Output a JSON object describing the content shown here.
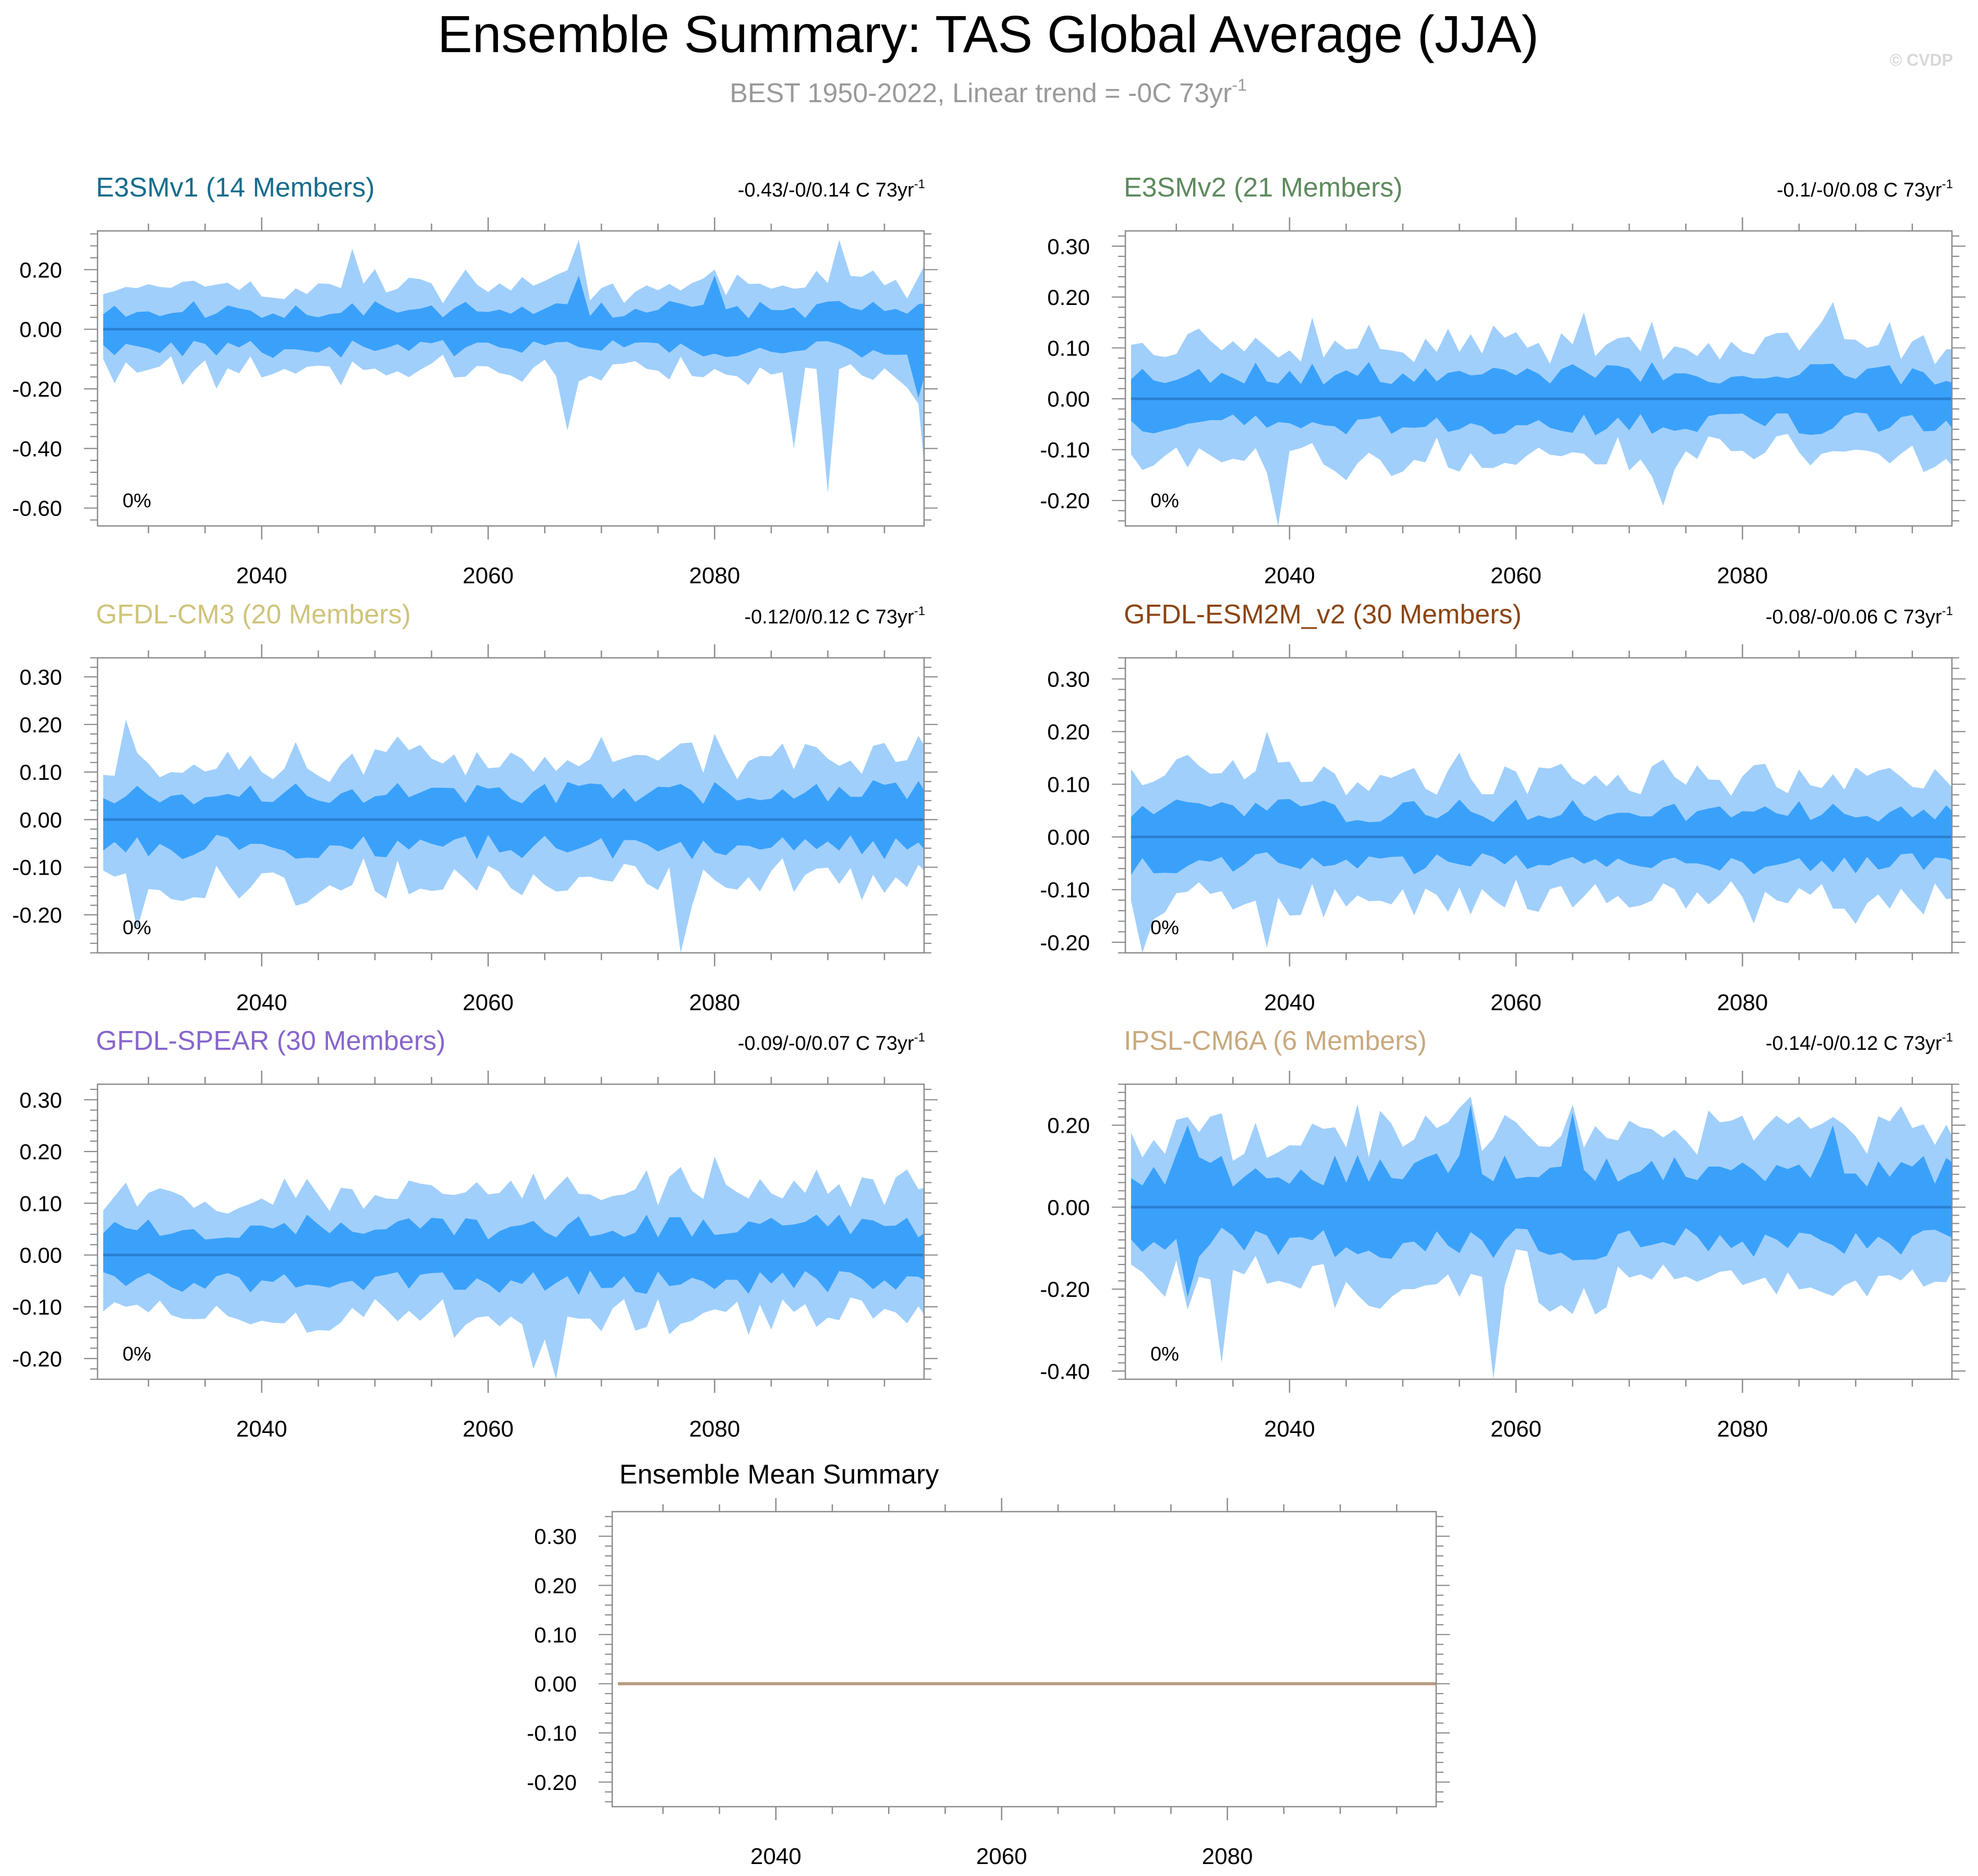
{
  "figure": {
    "title": "Ensemble Summary: TAS Global Average (JJA)",
    "subtitle_main": "BEST 1950-2022, Linear trend = -0C 73yr",
    "subtitle_sup": "-1",
    "watermark": "© CVDP"
  },
  "colors": {
    "band_outer": "#a0cffc",
    "band_inner": "#3aa1fb",
    "mean_line": "#2a7fd1",
    "frame": "#8a8a8a",
    "tick_text": "#000000",
    "subtitle": "#9a9a9a",
    "watermark": "#d8d8d8",
    "summary_line": "#b89c80"
  },
  "chart_data": [
    {
      "type": "area",
      "model": "E3SMv1 (14 Members)",
      "model_color": "#176c8c",
      "trend_label": "-0.43/-0/0.14 C 73yr",
      "trend_sup": "-1",
      "percent_label": "0%",
      "x_range": [
        2026,
        2099
      ],
      "xlim": [
        2025.5,
        2098.5
      ],
      "xticks": [
        2040,
        2060,
        2080
      ],
      "ylim": [
        -0.66,
        0.33
      ],
      "yticks": [
        -0.6,
        -0.4,
        -0.2,
        0.0,
        0.2
      ],
      "ytick_labels": [
        "-0.60",
        "-0.40",
        "-0.20",
        "0.00",
        "0.20"
      ],
      "seed": 11,
      "outer_scale": 0.16,
      "inner_scale": 0.08,
      "outer_spikes": {
        "upper": [
          [
            2068,
            0.3
          ],
          [
            2091,
            0.3
          ],
          [
            2099,
            0.25
          ],
          [
            2048,
            0.27
          ]
        ],
        "lower": [
          [
            2090,
            -0.55
          ],
          [
            2099,
            -0.65
          ],
          [
            2087,
            -0.4
          ],
          [
            2067,
            -0.34
          ]
        ]
      },
      "inner_spikes": {
        "upper": [
          [
            2068,
            0.18
          ],
          [
            2080,
            0.18
          ]
        ],
        "lower": [
          [
            2098,
            -0.23
          ]
        ]
      }
    },
    {
      "type": "area",
      "model": "E3SMv2 (21 Members)",
      "model_color": "#5e8a5e",
      "trend_label": "-0.1/-0/0.08 C 73yr",
      "trend_sup": "-1",
      "percent_label": "0%",
      "x_range": [
        2026,
        2099
      ],
      "xlim": [
        2025.5,
        2098.5
      ],
      "xticks": [
        2040,
        2060,
        2080
      ],
      "ylim": [
        -0.25,
        0.33
      ],
      "yticks": [
        -0.2,
        -0.1,
        0.0,
        0.1,
        0.2,
        0.3
      ],
      "ytick_labels": [
        "-0.20",
        "-0.10",
        "0.00",
        "0.10",
        "0.20",
        "0.30"
      ],
      "seed": 23,
      "outer_scale": 0.12,
      "inner_scale": 0.06,
      "outer_spikes": {
        "upper": [
          [
            2066,
            0.17
          ],
          [
            2088,
            0.19
          ]
        ],
        "lower": [
          [
            2039,
            -0.25
          ],
          [
            2073,
            -0.21
          ]
        ]
      },
      "inner_spikes": {
        "upper": [],
        "lower": []
      }
    },
    {
      "type": "area",
      "model": "GFDL-CM3 (20 Members)",
      "model_color": "#cfc47a",
      "trend_label": "-0.12/0/0.12 C 73yr",
      "trend_sup": "-1",
      "percent_label": "0%",
      "x_range": [
        2026,
        2099
      ],
      "xlim": [
        2025.5,
        2098.5
      ],
      "xticks": [
        2040,
        2060,
        2080
      ],
      "ylim": [
        -0.28,
        0.34
      ],
      "yticks": [
        -0.2,
        -0.1,
        0.0,
        0.1,
        0.2,
        0.3
      ],
      "ytick_labels": [
        "-0.20",
        "-0.10",
        "0.00",
        "0.10",
        "0.20",
        "0.30"
      ],
      "seed": 37,
      "outer_scale": 0.14,
      "inner_scale": 0.07,
      "outer_spikes": {
        "upper": [
          [
            2028,
            0.21
          ]
        ],
        "lower": [
          [
            2077,
            -0.28
          ],
          [
            2029,
            -0.23
          ]
        ]
      },
      "inner_spikes": {
        "upper": [],
        "lower": []
      }
    },
    {
      "type": "area",
      "model": "GFDL-ESM2M_v2 (30 Members)",
      "model_color": "#8b4513",
      "trend_label": "-0.08/-0/0.06 C 73yr",
      "trend_sup": "-1",
      "percent_label": "0%",
      "x_range": [
        2026,
        2099
      ],
      "xlim": [
        2025.5,
        2098.5
      ],
      "xticks": [
        2040,
        2060,
        2080
      ],
      "ylim": [
        -0.22,
        0.34
      ],
      "yticks": [
        -0.2,
        -0.1,
        0.0,
        0.1,
        0.2,
        0.3
      ],
      "ytick_labels": [
        "-0.20",
        "-0.10",
        "0.00",
        "0.10",
        "0.20",
        "0.30"
      ],
      "seed": 41,
      "outer_scale": 0.13,
      "inner_scale": 0.06,
      "outer_spikes": {
        "upper": [
          [
            2038,
            0.2
          ]
        ],
        "lower": [
          [
            2027,
            -0.22
          ],
          [
            2038,
            -0.21
          ]
        ]
      },
      "inner_spikes": {
        "upper": [],
        "lower": []
      }
    },
    {
      "type": "area",
      "model": "GFDL-SPEAR (30 Members)",
      "model_color": "#8866cc",
      "trend_label": "-0.09/-0/0.07 C 73yr",
      "trend_sup": "-1",
      "percent_label": "0%",
      "x_range": [
        2026,
        2099
      ],
      "xlim": [
        2025.5,
        2098.5
      ],
      "xticks": [
        2040,
        2060,
        2080
      ],
      "ylim": [
        -0.24,
        0.33
      ],
      "yticks": [
        -0.2,
        -0.1,
        0.0,
        0.1,
        0.2,
        0.3
      ],
      "ytick_labels": [
        "-0.20",
        "-0.10",
        "0.00",
        "0.10",
        "0.20",
        "0.30"
      ],
      "seed": 53,
      "outer_scale": 0.13,
      "inner_scale": 0.065,
      "outer_spikes": {
        "upper": [
          [
            2080,
            0.19
          ]
        ],
        "lower": [
          [
            2066,
            -0.24
          ],
          [
            2064,
            -0.22
          ]
        ]
      },
      "inner_spikes": {
        "upper": [],
        "lower": []
      }
    },
    {
      "type": "area",
      "model": "IPSL-CM6A (6 Members)",
      "model_color": "#c8a97e",
      "trend_label": "-0.14/-0/0.12 C 73yr",
      "trend_sup": "-1",
      "percent_label": "0%",
      "x_range": [
        2026,
        2099
      ],
      "xlim": [
        2025.5,
        2098.5
      ],
      "xticks": [
        2040,
        2060,
        2080
      ],
      "ylim": [
        -0.42,
        0.3
      ],
      "yticks": [
        -0.4,
        -0.2,
        0.0,
        0.2
      ],
      "ytick_labels": [
        "-0.40",
        "-0.20",
        "0.00",
        "0.20"
      ],
      "seed": 67,
      "two_band_only": true,
      "outer_scale": 0.2,
      "inner_scale": 0.11,
      "outer_spikes": {
        "upper": [],
        "lower": [
          [
            2058,
            -0.42
          ],
          [
            2034,
            -0.38
          ],
          [
            2031,
            -0.25
          ]
        ]
      },
      "inner_spikes": {
        "upper": [
          [
            2056,
            0.25
          ],
          [
            2031,
            0.2
          ],
          [
            2065,
            0.23
          ],
          [
            2088,
            0.2
          ]
        ],
        "lower": [
          [
            2031,
            -0.22
          ]
        ]
      }
    },
    {
      "type": "line",
      "model": "Ensemble Mean Summary",
      "model_color": "#000000",
      "x_range": [
        2026,
        2099
      ],
      "xlim": [
        2025.5,
        2098.5
      ],
      "xticks": [
        2040,
        2060,
        2080
      ],
      "ylim": [
        -0.25,
        0.35
      ],
      "yticks": [
        -0.2,
        -0.1,
        0.0,
        0.1,
        0.2,
        0.3
      ],
      "ytick_labels": [
        "-0.20",
        "-0.10",
        "0.00",
        "0.10",
        "0.20",
        "0.30"
      ],
      "series": [
        {
          "name": "ensemble mean",
          "x": [
            2026,
            2099
          ],
          "values": [
            0.0,
            0.0
          ]
        }
      ]
    }
  ]
}
